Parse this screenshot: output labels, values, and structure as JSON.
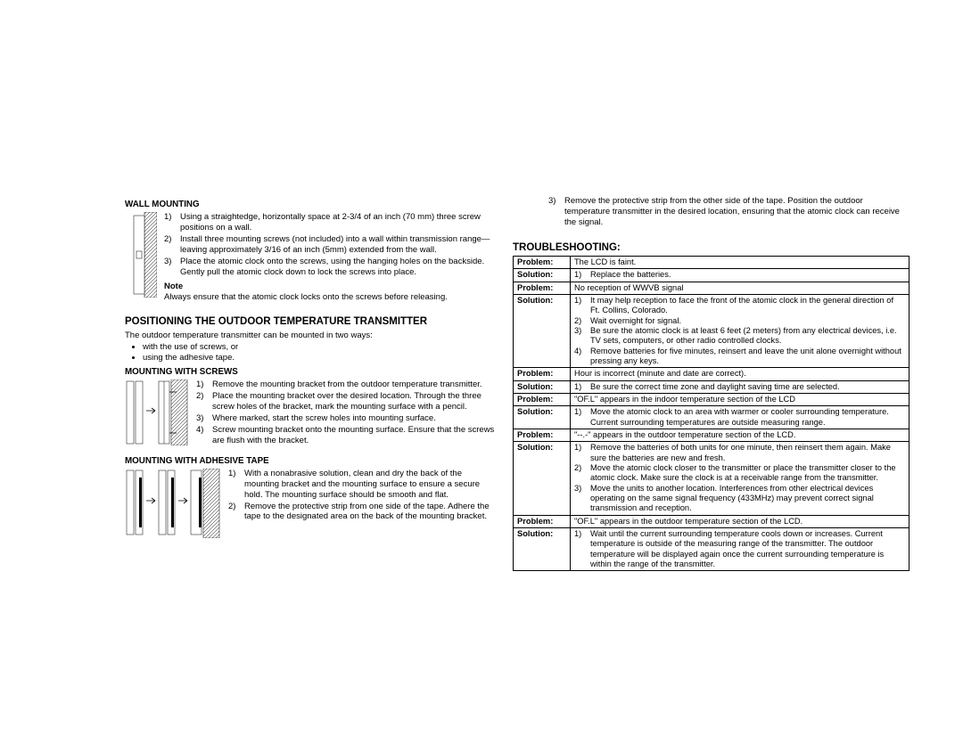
{
  "left": {
    "wall_mounting": {
      "title": "WALL MOUNTING",
      "steps": [
        {
          "n": "1)",
          "t": "Using a straightedge, horizontally space at 2-3/4 of an inch (70 mm) three screw positions on a wall."
        },
        {
          "n": "2)",
          "t": "Install three mounting screws (not included) into a wall within transmission range—leaving approximately 3/16 of an inch (5mm) extended from the wall."
        },
        {
          "n": "3)",
          "t": "Place the atomic clock onto the screws, using the hanging holes on the backside. Gently pull the atomic clock down to lock the screws into place."
        }
      ],
      "note_hdr": "Note",
      "note": "Always ensure that the atomic clock locks onto the screws before releasing."
    },
    "positioning": {
      "title": "POSITIONING THE OUTDOOR TEMPERATURE TRANSMITTER",
      "intro": "The outdoor temperature transmitter can be mounted in two ways:",
      "bullets": [
        "with the use of screws, or",
        "using the adhesive tape."
      ]
    },
    "mount_screws": {
      "title": "MOUNTING WITH SCREWS",
      "steps": [
        {
          "n": "1)",
          "t": "Remove the mounting bracket from the outdoor temperature transmitter."
        },
        {
          "n": "2)",
          "t": "Place the mounting bracket over the desired location. Through the three screw holes of the bracket, mark the mounting surface with a pencil."
        },
        {
          "n": "3)",
          "t": "Where marked, start the screw holes into mounting surface."
        },
        {
          "n": "4)",
          "t": "Screw mounting bracket onto the mounting surface. Ensure that the screws are flush with the bracket."
        }
      ]
    },
    "mount_tape": {
      "title": "MOUNTING WITH ADHESIVE TAPE",
      "steps": [
        {
          "n": "1)",
          "t": "With a nonabrasive solution, clean and dry the back of the mounting bracket and the mounting surface to ensure a secure hold. The mounting surface should be smooth and flat."
        },
        {
          "n": "2)",
          "t": "Remove the protective strip from one side of the tape. Adhere the tape to the designated area on the back of the mounting bracket."
        }
      ]
    }
  },
  "right": {
    "continued_step": {
      "n": "3)",
      "t": "Remove the protective strip from the other side of the tape. Position the outdoor temperature transmitter in the desired location, ensuring that the atomic clock can receive the signal."
    },
    "troubleshooting_title": "TROUBLESHOOTING:",
    "rows": [
      {
        "label": "Problem:",
        "content": "The LCD is faint."
      },
      {
        "label": "Solution:",
        "list": [
          {
            "n": "1)",
            "t": "Replace the batteries."
          }
        ]
      },
      {
        "label": "Problem:",
        "content": "No reception of WWVB signal"
      },
      {
        "label": "Solution:",
        "list": [
          {
            "n": "1)",
            "t": "It may help reception to face the front of the atomic clock in the general direction of Ft. Collins, Colorado."
          },
          {
            "n": "2)",
            "t": "Wait overnight for signal."
          },
          {
            "n": "3)",
            "t": "Be sure the atomic clock is at least 6 feet (2 meters) from any electrical devices, i.e. TV sets, computers, or other radio controlled clocks."
          },
          {
            "n": "4)",
            "t": "Remove batteries for five minutes, reinsert and leave the unit alone overnight without pressing any keys."
          }
        ]
      },
      {
        "label": "Problem:",
        "content": "Hour is incorrect (minute and date are correct)."
      },
      {
        "label": "Solution:",
        "list": [
          {
            "n": "1)",
            "t": "Be sure the correct time zone and daylight saving time are selected."
          }
        ]
      },
      {
        "label": "Problem:",
        "content": "\"OF.L\" appears in the indoor temperature section of the LCD"
      },
      {
        "label": "Solution:",
        "list": [
          {
            "n": "1)",
            "t": "Move the atomic clock to an area with warmer or cooler surrounding temperature. Current surrounding temperatures are outside measuring range."
          }
        ]
      },
      {
        "label": "Problem:",
        "content": "\"--.-\" appears in the outdoor  temperature section of the LCD."
      },
      {
        "label": "Solution:",
        "list": [
          {
            "n": "1)",
            "t": "Remove the batteries of both units for one minute, then reinsert them again. Make sure the batteries are new and fresh."
          },
          {
            "n": "2)",
            "t": "Move the atomic clock closer to the transmitter or place the transmitter closer to the atomic clock. Make sure the clock is at a receivable range from the transmitter."
          },
          {
            "n": "3)",
            "t": "Move the units to another location. Interferences from other electrical devices operating on the same signal frequency (433MHz) may prevent correct signal transmission and reception."
          }
        ]
      },
      {
        "label": "Problem:",
        "content": "\"OF.L\" appears in the outdoor temperature section of the LCD."
      },
      {
        "label": "Solution:",
        "list": [
          {
            "n": "1)",
            "t": "Wait until the current surrounding temperature cools down or increases. Current temperature is outside of the measuring range of the transmitter. The outdoor temperature will be displayed again once the current surrounding temperature is within the range of the transmitter."
          }
        ]
      }
    ]
  }
}
